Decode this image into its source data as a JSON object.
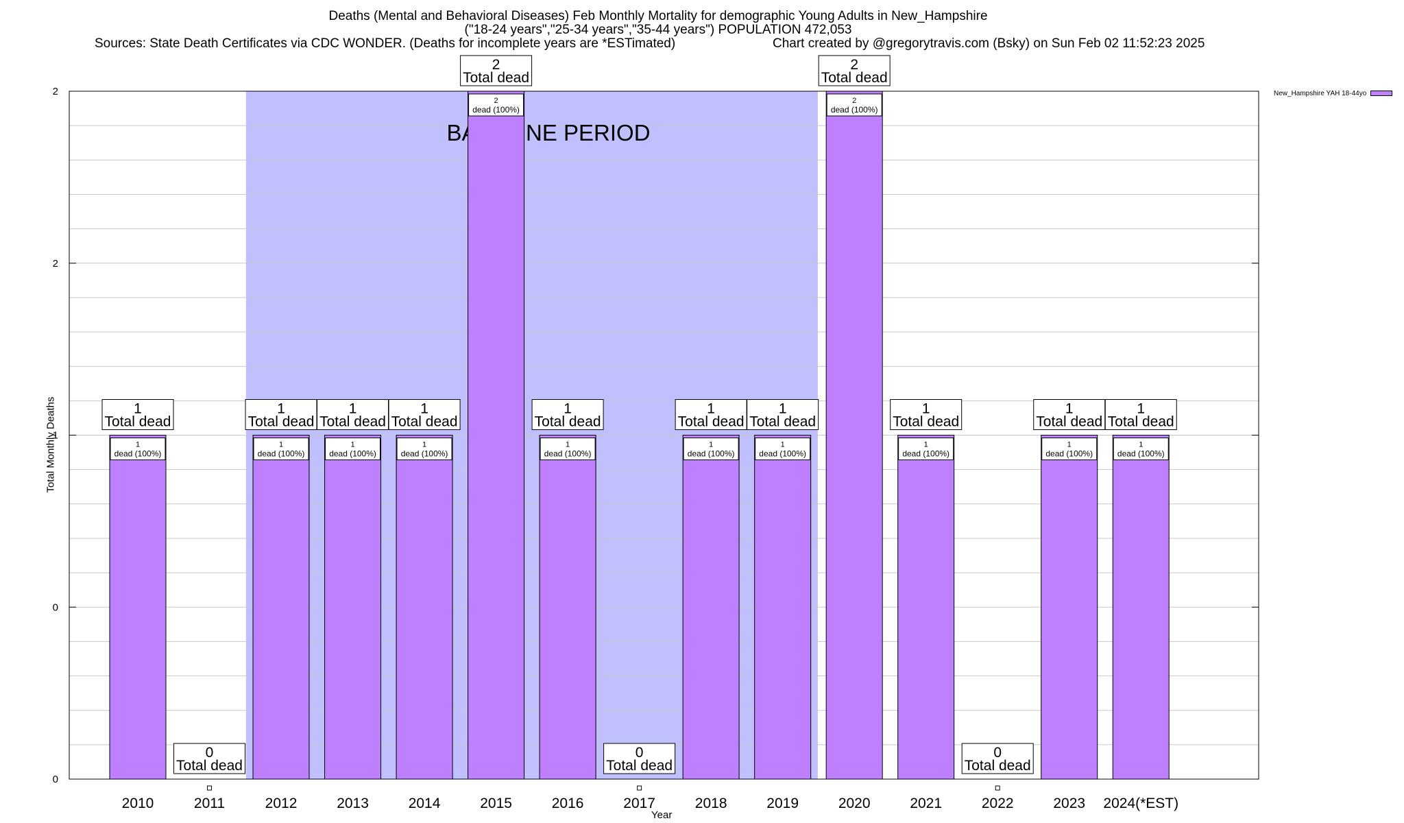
{
  "title": {
    "line1": "Deaths (Mental and Behavioral Diseases) Feb Monthly Mortality for demographic Young Adults in New_Hampshire",
    "line2": "(\"18-24 years\",\"25-34 years\",\"35-44 years\") POPULATION 472,053",
    "sources": "Sources: State Death Certificates via CDC WONDER. (Deaths for incomplete years are *ESTimated)",
    "credit": "Chart created by @gregorytravis.com (Bsky) on Sun Feb 02 11:52:23 2025"
  },
  "chart_data": {
    "type": "bar",
    "categories": [
      "2010",
      "2011",
      "2012",
      "2013",
      "2014",
      "2015",
      "2016",
      "2017",
      "2018",
      "2019",
      "2020",
      "2021",
      "2022",
      "2023",
      "2024(*EST)"
    ],
    "series": [
      {
        "name": "New_Hampshire YAH 18-44yo",
        "values": [
          1,
          0,
          1,
          1,
          1,
          2,
          1,
          0,
          1,
          1,
          2,
          1,
          0,
          1,
          1
        ],
        "color": "#bf80ff"
      }
    ],
    "total_label": "Total dead",
    "segment_label": "dead (100%)",
    "xlabel": "Year",
    "ylabel": "Total Monthly Deaths",
    "ylim": [
      0,
      2
    ],
    "y_tick_labels": [
      "0",
      "0",
      "1",
      "2",
      "2"
    ],
    "grid": true,
    "baseline_period": {
      "label": "BASELINE PERIOD",
      "from": "2012",
      "to": "2019",
      "color": "#c0c0ff"
    },
    "legend_position": "top-right"
  }
}
